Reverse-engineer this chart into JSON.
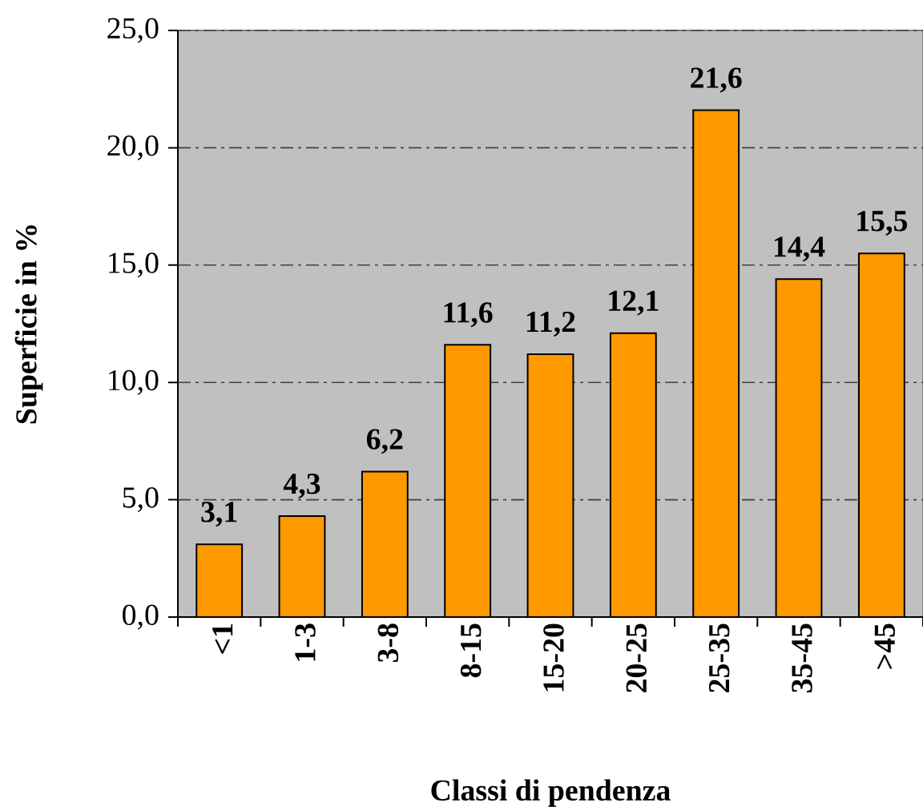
{
  "chart_data": {
    "type": "bar",
    "xlabel": "Classi di pendenza",
    "ylabel": "Superficie in %",
    "categories": [
      "<1",
      "1-3",
      "3-8",
      "8-15",
      "15-20",
      "20-25",
      "25-35",
      "35-45",
      ">45"
    ],
    "values": [
      3.1,
      4.3,
      6.2,
      11.6,
      11.2,
      12.1,
      21.6,
      14.4,
      15.5
    ],
    "value_labels": [
      "3,1",
      "4,3",
      "6,2",
      "11,6",
      "11,2",
      "12,1",
      "21,6",
      "14,4",
      "15,5"
    ],
    "color": "#ff9900",
    "ylim": [
      0,
      25
    ],
    "yticks": [
      {
        "value": 0,
        "label": "0,0"
      },
      {
        "value": 5,
        "label": "5,0"
      },
      {
        "value": 10,
        "label": "10,0"
      },
      {
        "value": 15,
        "label": "15,0"
      },
      {
        "value": 20,
        "label": "20,0"
      },
      {
        "value": 25,
        "label": "25,0"
      }
    ],
    "grid": "y"
  }
}
